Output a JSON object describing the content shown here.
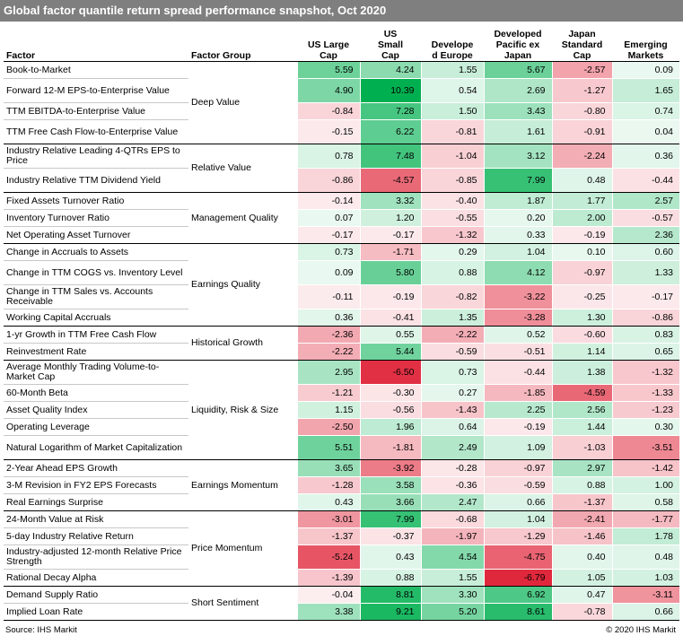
{
  "header": {
    "title": "Global factor quantile return spread performance snapshot, Oct 2020"
  },
  "chart_data": {
    "type": "table",
    "title": "Global factor quantile return spread performance snapshot, Oct 2020",
    "factor_header": "Factor",
    "group_header": "Factor Group",
    "columns": [
      "US Large Cap",
      "US Small Cap",
      "Developed Europe",
      "Developed Pacific ex Japan",
      "Japan Standard Cap",
      "Emerging Markets"
    ],
    "column_labels": [
      "US Large\nCap",
      "US\nSmall\nCap",
      "Develope\nd Europe",
      "Developed\nPacific ex\nJapan",
      "Japan\nStandard\nCap",
      "Emerging\nMarkets"
    ],
    "colors": {
      "positive": "#00b050",
      "negative": "#e0283c",
      "neutral": "#ffffff",
      "title_bar": "#7f7f7f"
    },
    "groups": [
      {
        "name": "Deep Value",
        "rows": [
          {
            "factor": "Book-to-Market",
            "values": [
              5.59,
              4.24,
              1.55,
              5.67,
              -2.57,
              0.09
            ]
          },
          {
            "factor": "Forward 12-M EPS-to-Enterprise Value",
            "values": [
              4.9,
              10.39,
              0.54,
              2.69,
              -1.27,
              1.65
            ]
          },
          {
            "factor": "TTM EBITDA-to-Enterprise Value",
            "values": [
              -0.84,
              7.28,
              1.5,
              3.43,
              -0.8,
              0.74
            ]
          },
          {
            "factor": "TTM Free Cash Flow-to-Enterprise Value",
            "values": [
              -0.15,
              6.22,
              -0.81,
              1.61,
              -0.91,
              0.04
            ]
          }
        ]
      },
      {
        "name": "Relative Value",
        "rows": [
          {
            "factor": "Industry Relative Leading 4-QTRs EPS to Price",
            "values": [
              0.78,
              7.48,
              -1.04,
              3.12,
              -2.24,
              0.36
            ]
          },
          {
            "factor": "Industry Relative TTM Dividend Yield",
            "values": [
              -0.86,
              -4.57,
              -0.85,
              7.99,
              0.48,
              -0.44
            ]
          }
        ]
      },
      {
        "name": "Management Quality",
        "rows": [
          {
            "factor": "Fixed Assets Turnover Ratio",
            "values": [
              -0.14,
              3.32,
              -0.4,
              1.87,
              1.77,
              2.57
            ]
          },
          {
            "factor": "Inventory Turnover Ratio",
            "values": [
              0.07,
              1.2,
              -0.55,
              0.2,
              2.0,
              -0.57
            ]
          },
          {
            "factor": "Net Operating Asset Turnover",
            "values": [
              -0.17,
              -0.17,
              -1.32,
              0.33,
              -0.19,
              2.36
            ]
          }
        ]
      },
      {
        "name": "Earnings Quality",
        "rows": [
          {
            "factor": "Change in Accruals to Assets",
            "values": [
              0.73,
              -1.71,
              0.29,
              1.04,
              0.1,
              0.6
            ]
          },
          {
            "factor": "Change in TTM COGS vs. Inventory Level",
            "values": [
              0.09,
              5.8,
              0.88,
              4.12,
              -0.97,
              1.33
            ]
          },
          {
            "factor": "Change in TTM Sales vs. Accounts Receivable",
            "values": [
              -0.11,
              -0.19,
              -0.82,
              -3.22,
              -0.25,
              -0.17
            ]
          },
          {
            "factor": "Working Capital Accruals",
            "values": [
              0.36,
              -0.41,
              1.35,
              -3.28,
              1.3,
              -0.86
            ]
          }
        ]
      },
      {
        "name": "Historical Growth",
        "rows": [
          {
            "factor": "1-yr Growth in TTM Free Cash Flow",
            "values": [
              -2.36,
              0.55,
              -2.22,
              0.52,
              -0.6,
              0.83
            ]
          },
          {
            "factor": "Reinvestment Rate",
            "values": [
              -2.22,
              5.44,
              -0.59,
              -0.51,
              1.14,
              0.65
            ]
          }
        ]
      },
      {
        "name": "Liquidity, Risk & Size",
        "rows": [
          {
            "factor": "Average Monthly Trading Volume-to-Market Cap",
            "values": [
              2.95,
              -6.5,
              0.73,
              -0.44,
              1.38,
              -1.32
            ]
          },
          {
            "factor": "60-Month Beta",
            "values": [
              -1.21,
              -0.3,
              0.27,
              -1.85,
              -4.59,
              -1.33
            ]
          },
          {
            "factor": "Asset Quality Index",
            "values": [
              1.15,
              -0.56,
              -1.43,
              2.25,
              2.56,
              -1.23
            ]
          },
          {
            "factor": "Operating Leverage",
            "values": [
              -2.5,
              1.96,
              0.64,
              -0.19,
              1.44,
              0.3
            ]
          },
          {
            "factor": "Natural Logarithm of Market Capitalization",
            "values": [
              5.51,
              -1.81,
              2.49,
              1.09,
              -1.03,
              -3.51
            ]
          }
        ]
      },
      {
        "name": "Earnings Momentum",
        "rows": [
          {
            "factor": "2-Year Ahead EPS Growth",
            "values": [
              3.65,
              -3.92,
              -0.28,
              -0.97,
              2.97,
              -1.42
            ]
          },
          {
            "factor": "3-M Revision in FY2 EPS Forecasts",
            "values": [
              -1.28,
              3.58,
              -0.36,
              -0.59,
              0.88,
              1.0
            ]
          },
          {
            "factor": "Real Earnings Surprise",
            "values": [
              0.43,
              3.66,
              2.47,
              0.66,
              -1.37,
              0.58
            ]
          }
        ]
      },
      {
        "name": "Price Momentum",
        "rows": [
          {
            "factor": "24-Month Value at Risk",
            "values": [
              -3.01,
              7.99,
              -0.68,
              1.04,
              -2.41,
              -1.77
            ]
          },
          {
            "factor": "5-day Industry Relative Return",
            "values": [
              -1.37,
              -0.37,
              -1.97,
              -1.29,
              -1.46,
              1.78
            ]
          },
          {
            "factor": "Industry-adjusted 12-month Relative Price Strength",
            "values": [
              -5.24,
              0.43,
              4.54,
              -4.75,
              0.4,
              0.48
            ]
          },
          {
            "factor": "Rational Decay Alpha",
            "values": [
              -1.39,
              0.88,
              1.55,
              -6.79,
              1.05,
              1.03
            ]
          }
        ]
      },
      {
        "name": "Short Sentiment",
        "rows": [
          {
            "factor": "Demand Supply Ratio",
            "values": [
              -0.04,
              8.81,
              3.3,
              6.92,
              0.47,
              -3.11
            ]
          },
          {
            "factor": "Implied Loan Rate",
            "values": [
              3.38,
              9.21,
              5.2,
              8.61,
              -0.78,
              0.66
            ]
          }
        ]
      }
    ]
  },
  "footer": {
    "source": "Source: IHS Markit",
    "copyright": "© 2020 IHS Markit"
  }
}
